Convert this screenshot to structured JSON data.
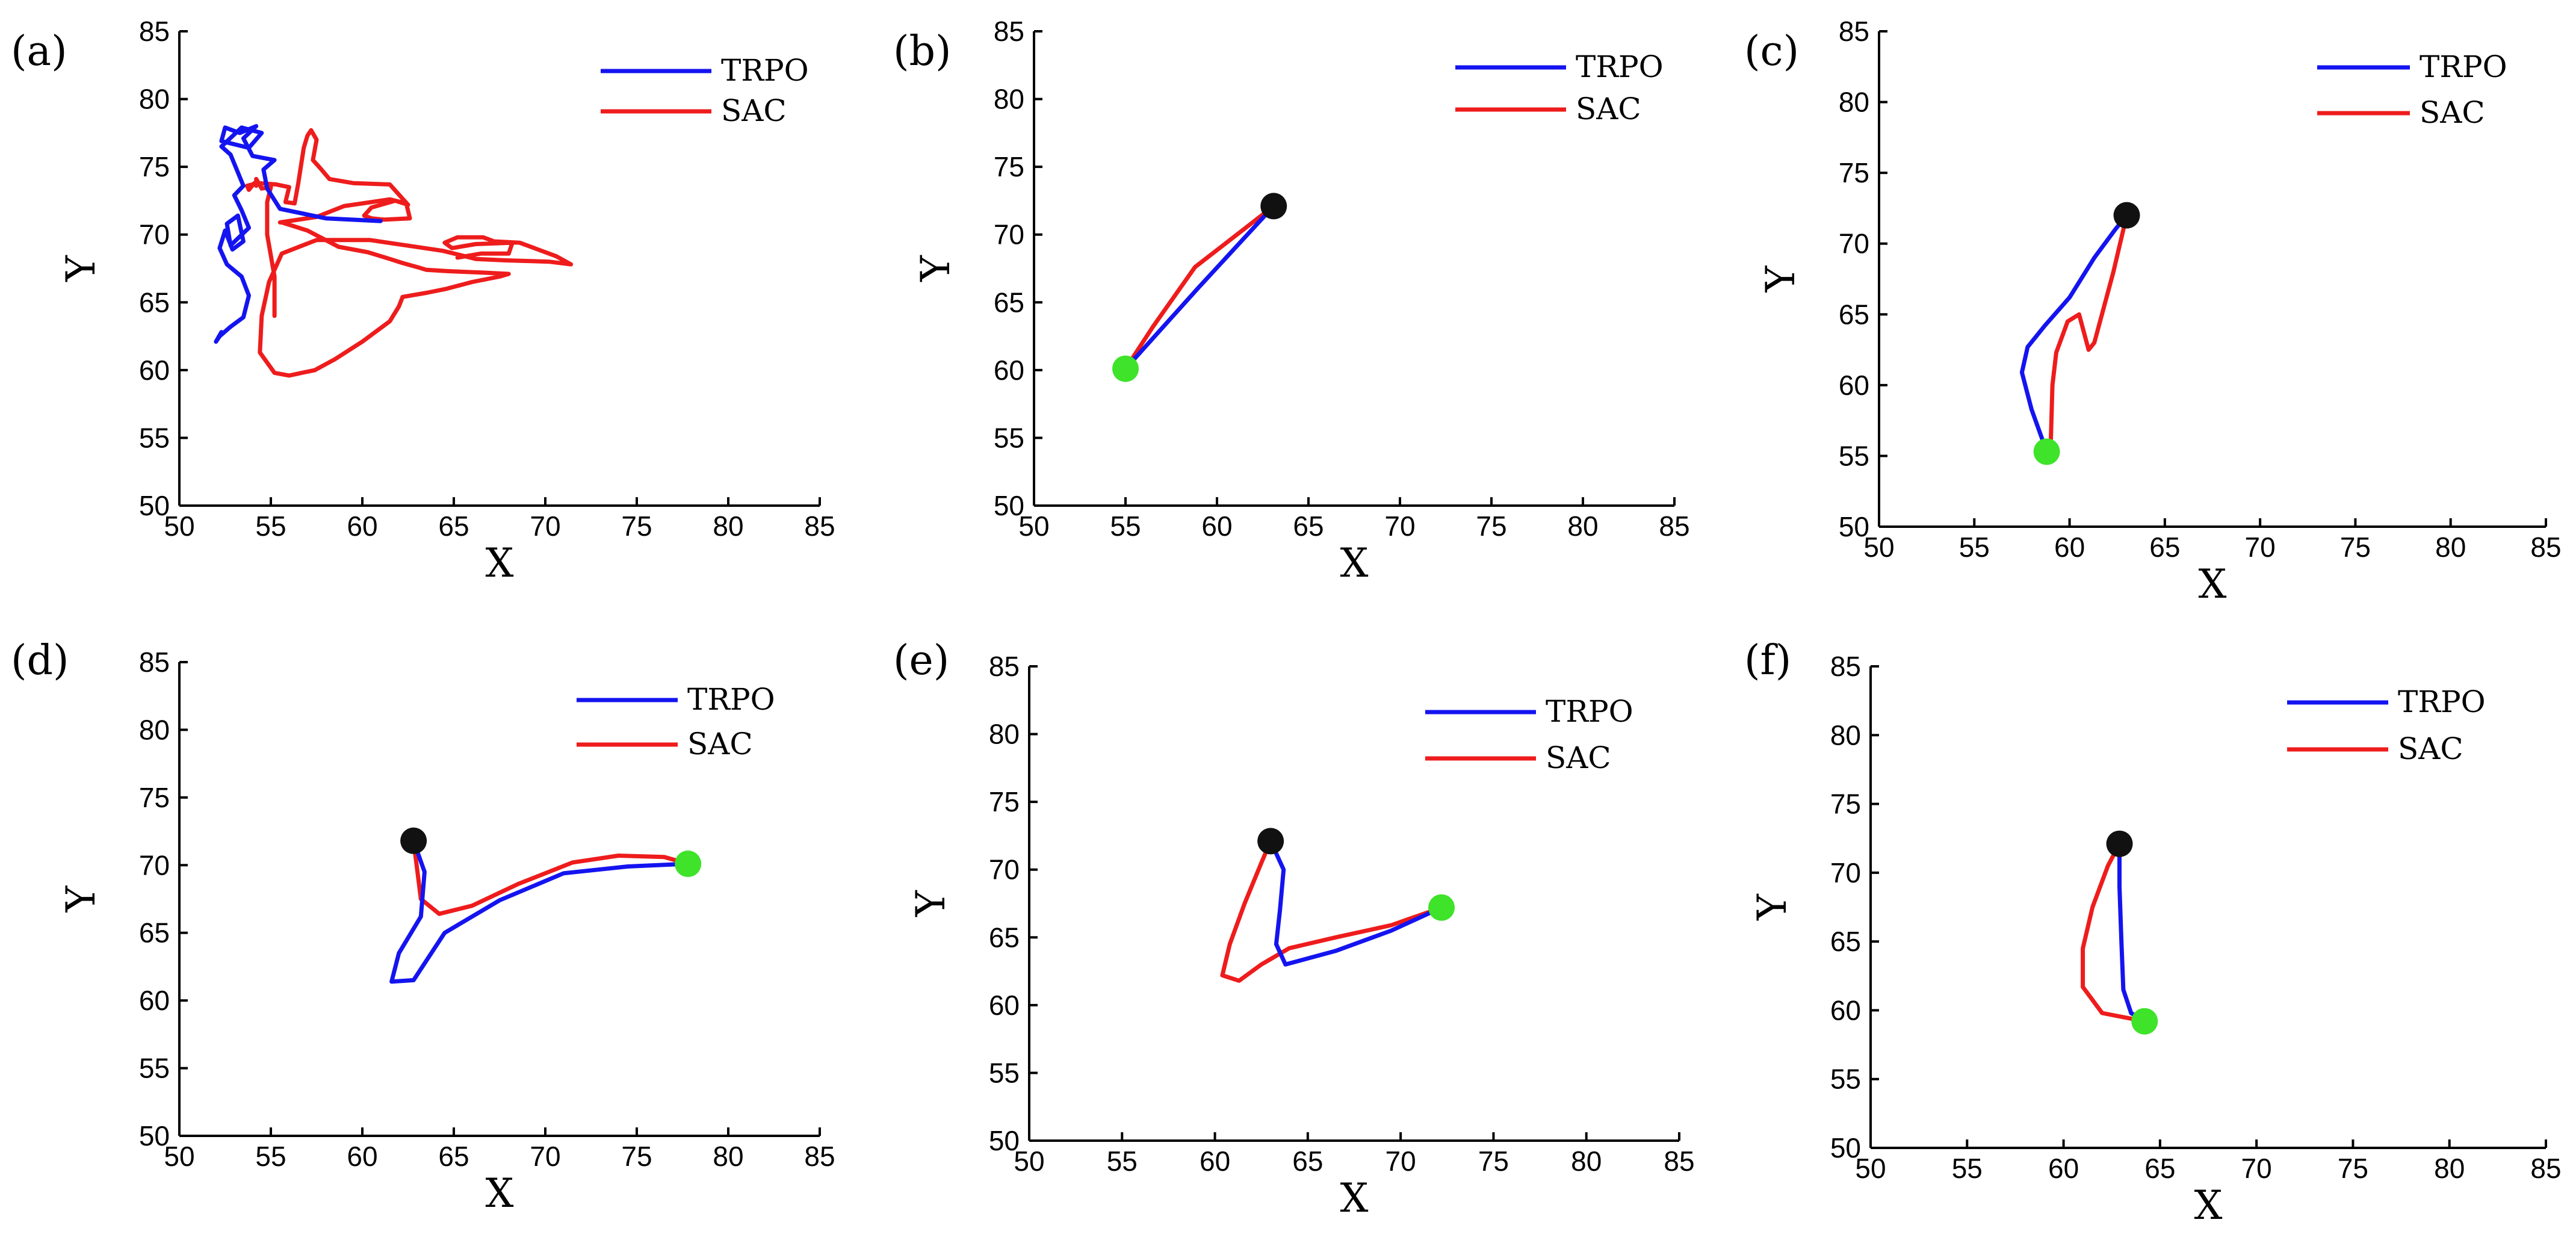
{
  "figure": {
    "background": "#ffffff"
  },
  "colors": {
    "trpo": "#1414f0",
    "sac": "#ee1c1c",
    "start": "#111111",
    "goal": "#3ee32a"
  },
  "chart_data": [
    {
      "panel": "(a)",
      "letter": "a",
      "type": "line",
      "xlabel": "X",
      "ylabel": "Y",
      "xlim": [
        50,
        85
      ],
      "ylim": [
        50,
        85
      ],
      "xticks": [
        "50",
        "55",
        "60",
        "65",
        "70",
        "75",
        "80",
        "85"
      ],
      "yticks": [
        "50",
        "55",
        "60",
        "65",
        "70",
        "75",
        "80",
        "85"
      ],
      "legend": [
        "TRPO",
        "SAC"
      ],
      "series": [
        {
          "name": "TRPO",
          "x": [
            61.0,
            58,
            55.5,
            54.8,
            54.6,
            55.2,
            54,
            53.5,
            54.2,
            53.3,
            52.5,
            52.3,
            53.8,
            54.5,
            53.4,
            52.3,
            52.8,
            53.5,
            53,
            53.4,
            53.8,
            52.8,
            52.6,
            53.2,
            53.5,
            52.9,
            52.5,
            52.2,
            52.6,
            53.4,
            53.8,
            53.5,
            52.8,
            52.2,
            52.0,
            52.3
          ],
          "y": [
            71.0,
            71.2,
            71.9,
            73.4,
            74.8,
            75.5,
            75.8,
            77.1,
            78.0,
            77.5,
            77.9,
            76.9,
            76.4,
            77.5,
            77.9,
            76.5,
            75.9,
            73.6,
            72.9,
            71.8,
            70.5,
            69.2,
            70.8,
            71.4,
            69.5,
            68.9,
            70.3,
            69.0,
            67.8,
            66.9,
            65.5,
            63.9,
            63.2,
            62.5,
            62.1,
            62.8
          ]
        },
        {
          "name": "SAC",
          "x": [
            55.2,
            55.2,
            54.8,
            54.8,
            55.0,
            54.5,
            54.2,
            54.2,
            54.1,
            53.8,
            53.7,
            54.3,
            55.3,
            56.0,
            55.8,
            56.3,
            56.5,
            56.8,
            57.0,
            57.2,
            57.5,
            57.3,
            57.7,
            58.2,
            59.5,
            61.5,
            62.5,
            61.8,
            60.5,
            60.1,
            60.5,
            61.2,
            62.6,
            62.4,
            61.5,
            59.0,
            57.5,
            55.5,
            55.6,
            57.0,
            58.7,
            60.3,
            61.5,
            62.2,
            63.0,
            63.5,
            64.7,
            66.5,
            68.0,
            67.5,
            66.0,
            64.6,
            63.5,
            62.2,
            62.0,
            61.5,
            60.0,
            58.5,
            57.4,
            56.0,
            55.2,
            54.4,
            54.5,
            54.9,
            55.6,
            57.5,
            60.4,
            62.4,
            64.4,
            66.2,
            67.8,
            70.2,
            71.4,
            70.6,
            68.6,
            67.2,
            66.6,
            65.2,
            64.5,
            64.9,
            66.2,
            68.2,
            68.0,
            66.5,
            65.2
          ],
          "y": [
            64.0,
            66.9,
            70.0,
            72.4,
            73.5,
            73.4,
            74.1,
            73.6,
            73.8,
            73.3,
            73.6,
            73.8,
            73.7,
            73.5,
            72.4,
            72.3,
            73.8,
            76.4,
            77.3,
            77.7,
            77.0,
            75.5,
            74.9,
            74.1,
            73.8,
            73.7,
            72.2,
            72.5,
            72.0,
            71.4,
            71.2,
            71.1,
            71.2,
            72.3,
            72.6,
            72.1,
            71.3,
            70.9,
            70.9,
            70.3,
            69.1,
            68.7,
            68.2,
            67.9,
            67.6,
            67.4,
            67.3,
            67.2,
            67.1,
            66.9,
            66.5,
            66.0,
            65.7,
            65.4,
            64.7,
            63.6,
            62.1,
            60.8,
            60.0,
            59.6,
            59.8,
            61.3,
            64.0,
            66.5,
            68.6,
            69.6,
            69.6,
            69.2,
            68.8,
            68.2,
            68.1,
            68.0,
            67.8,
            68.4,
            69.4,
            69.5,
            69.8,
            69.8,
            69.4,
            69.0,
            69.3,
            69.4,
            68.6,
            68.6,
            68.3
          ]
        }
      ],
      "start": null,
      "goal": null
    },
    {
      "panel": "(b)",
      "letter": "b",
      "type": "line",
      "xlabel": "X",
      "ylabel": "Y",
      "xlim": [
        50,
        85
      ],
      "ylim": [
        50,
        85
      ],
      "xticks": [
        "50",
        "55",
        "60",
        "65",
        "70",
        "75",
        "80",
        "85"
      ],
      "yticks": [
        "50",
        "55",
        "60",
        "65",
        "70",
        "75",
        "80",
        "85"
      ],
      "legend": [
        "TRPO",
        "SAC"
      ],
      "series": [
        {
          "name": "TRPO",
          "x": [
            63.1,
            59.0,
            55.0
          ],
          "y": [
            72.1,
            66.1,
            60.1
          ]
        },
        {
          "name": "SAC",
          "x": [
            63.1,
            58.8,
            56.5,
            55.0
          ],
          "y": [
            72.1,
            67.6,
            63.2,
            60.1
          ]
        }
      ],
      "start": {
        "x": 63.1,
        "y": 72.1
      },
      "goal": {
        "x": 55.0,
        "y": 60.1
      }
    },
    {
      "panel": "(c)",
      "letter": "c",
      "type": "line",
      "xlabel": "X",
      "ylabel": "Y",
      "xlim": [
        50,
        85
      ],
      "ylim": [
        50,
        85
      ],
      "xticks": [
        "50",
        "55",
        "60",
        "65",
        "70",
        "75",
        "80",
        "85"
      ],
      "yticks": [
        "50",
        "55",
        "60",
        "65",
        "70",
        "75",
        "80",
        "85"
      ],
      "legend": [
        "TRPO",
        "SAC"
      ],
      "series": [
        {
          "name": "TRPO",
          "x": [
            63.0,
            62.4,
            61.3,
            60.0,
            58.7,
            57.8,
            57.5,
            58.0,
            58.8
          ],
          "y": [
            72.0,
            71.0,
            69.0,
            66.2,
            64.2,
            62.7,
            60.9,
            58.3,
            55.3
          ]
        },
        {
          "name": "SAC",
          "x": [
            63.0,
            62.3,
            61.3,
            61.0,
            60.5,
            59.9,
            59.3,
            59.1,
            59.0
          ],
          "y": [
            72.0,
            68.0,
            63.0,
            62.5,
            65.0,
            64.5,
            62.3,
            60.0,
            55.3
          ]
        }
      ],
      "start": {
        "x": 63.0,
        "y": 72.0
      },
      "goal": {
        "x": 58.8,
        "y": 55.3
      }
    },
    {
      "panel": "(d)",
      "letter": "d",
      "type": "line",
      "xlabel": "X",
      "ylabel": "Y",
      "xlim": [
        50,
        85
      ],
      "ylim": [
        50,
        85
      ],
      "xticks": [
        "50",
        "55",
        "60",
        "65",
        "70",
        "75",
        "80",
        "85"
      ],
      "yticks": [
        "50",
        "55",
        "60",
        "65",
        "70",
        "75",
        "80",
        "85"
      ],
      "legend": [
        "TRPO",
        "SAC"
      ],
      "series": [
        {
          "name": "TRPO",
          "x": [
            62.8,
            63.4,
            63.2,
            62.0,
            61.6,
            62.8,
            64.5,
            67.5,
            71.0,
            74.5,
            77.8
          ],
          "y": [
            71.8,
            69.5,
            66.2,
            63.5,
            61.4,
            61.5,
            65.0,
            67.4,
            69.4,
            69.9,
            70.1
          ]
        },
        {
          "name": "SAC",
          "x": [
            62.8,
            63.2,
            64.2,
            66.0,
            68.5,
            71.5,
            74.0,
            76.5,
            77.8
          ],
          "y": [
            71.8,
            67.5,
            66.4,
            67.0,
            68.6,
            70.2,
            70.7,
            70.6,
            70.1
          ]
        }
      ],
      "start": {
        "x": 62.8,
        "y": 71.8
      },
      "goal": {
        "x": 77.8,
        "y": 70.1
      }
    },
    {
      "panel": "(e)",
      "letter": "e",
      "type": "line",
      "xlabel": "X",
      "ylabel": "Y",
      "xlim": [
        50,
        85
      ],
      "ylim": [
        50,
        85
      ],
      "xticks": [
        "50",
        "55",
        "60",
        "65",
        "70",
        "75",
        "80",
        "85"
      ],
      "yticks": [
        "50",
        "55",
        "60",
        "65",
        "70",
        "75",
        "80",
        "85"
      ],
      "legend": [
        "TRPO",
        "SAC"
      ],
      "series": [
        {
          "name": "TRPO",
          "x": [
            63.0,
            63.7,
            63.5,
            63.3,
            63.8,
            66.5,
            69.5,
            72.2
          ],
          "y": [
            72.1,
            70.0,
            67.0,
            64.5,
            63.0,
            64.0,
            65.5,
            67.2
          ]
        },
        {
          "name": "SAC",
          "x": [
            63.0,
            62.5,
            61.6,
            60.8,
            60.4,
            61.3,
            62.5,
            64.0,
            66.5,
            69.5,
            72.2
          ],
          "y": [
            72.1,
            70.5,
            67.5,
            64.5,
            62.2,
            61.8,
            63.0,
            64.2,
            65.0,
            65.9,
            67.2
          ]
        }
      ],
      "start": {
        "x": 63.0,
        "y": 72.1
      },
      "goal": {
        "x": 72.2,
        "y": 67.2
      }
    },
    {
      "panel": "(f)",
      "letter": "f",
      "type": "line",
      "xlabel": "X",
      "ylabel": "Y",
      "xlim": [
        50,
        85
      ],
      "ylim": [
        50,
        85
      ],
      "xticks": [
        "50",
        "55",
        "60",
        "65",
        "70",
        "75",
        "80",
        "85"
      ],
      "yticks": [
        "50",
        "55",
        "60",
        "65",
        "70",
        "75",
        "80",
        "85"
      ],
      "legend": [
        "TRPO",
        "SAC"
      ],
      "series": [
        {
          "name": "TRPO",
          "x": [
            62.9,
            62.9,
            63.0,
            63.1,
            63.5,
            64.2
          ],
          "y": [
            72.1,
            69.0,
            65.0,
            61.5,
            59.8,
            59.2
          ]
        },
        {
          "name": "SAC",
          "x": [
            62.9,
            62.3,
            61.5,
            61.0,
            61.0,
            62.0,
            64.2
          ],
          "y": [
            72.1,
            70.5,
            67.5,
            64.5,
            61.7,
            59.8,
            59.2
          ]
        }
      ],
      "start": {
        "x": 62.9,
        "y": 72.1
      },
      "goal": {
        "x": 64.2,
        "y": 59.2
      }
    }
  ]
}
